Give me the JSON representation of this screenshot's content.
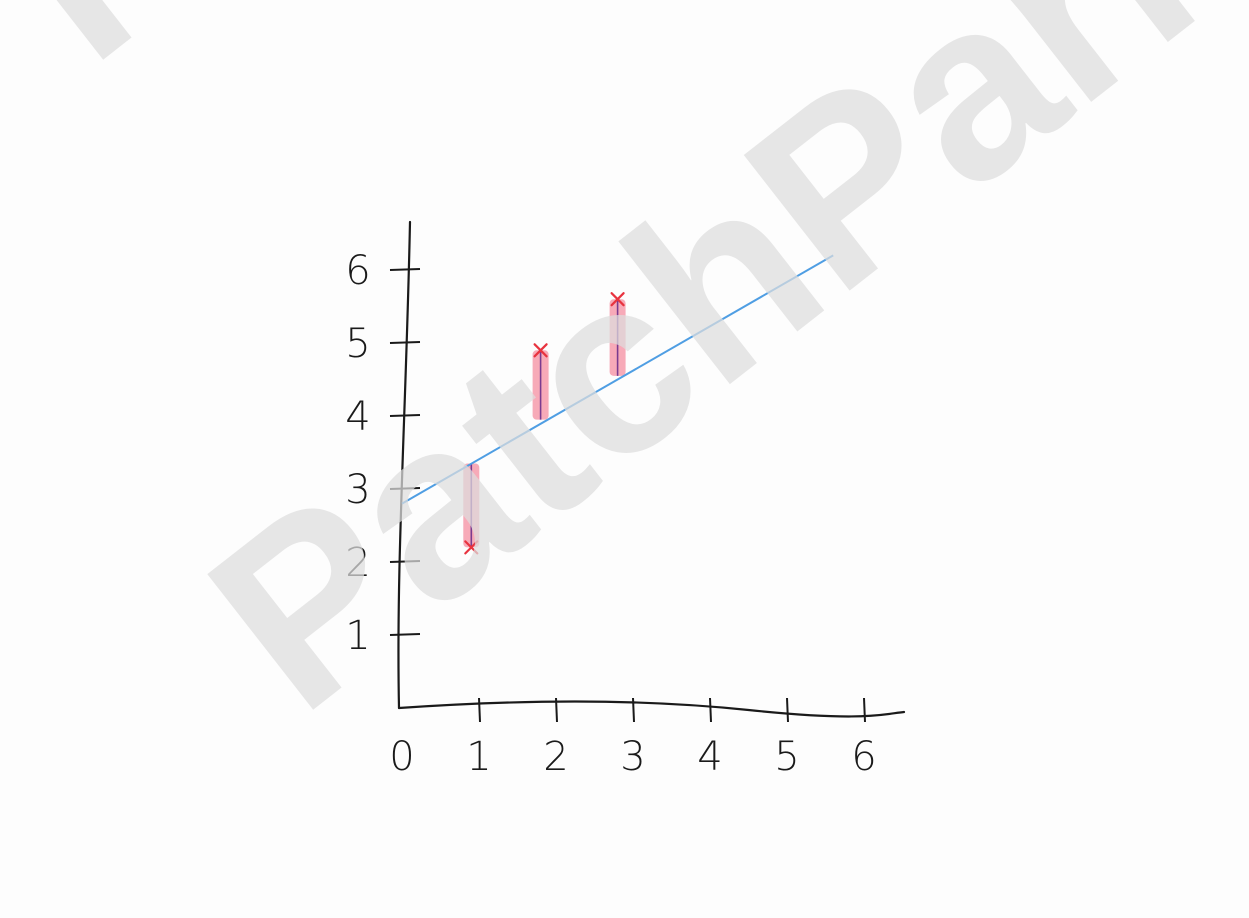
{
  "watermark": {
    "text": "PatchPark",
    "fragment": "F"
  },
  "colors": {
    "axis": "#1a1a1a",
    "fit_line": "#4f9ee3",
    "residual_fill": "#f48ea0",
    "residual_line": "#7a3b8f",
    "point": "#e8333f"
  },
  "chart_data": {
    "type": "scatter",
    "title": "",
    "xlabel": "",
    "ylabel": "",
    "xlim": [
      0,
      6
    ],
    "ylim": [
      0,
      6
    ],
    "x_ticks": [
      "0",
      "1",
      "2",
      "3",
      "4",
      "5",
      "6"
    ],
    "y_ticks": [
      "1",
      "2",
      "3",
      "4",
      "5",
      "6"
    ],
    "grid": false,
    "series": [
      {
        "type": "scatter",
        "points": [
          {
            "x": 0.9,
            "y": 2.2
          },
          {
            "x": 1.8,
            "y": 4.9
          },
          {
            "x": 2.8,
            "y": 5.6
          }
        ]
      },
      {
        "type": "line",
        "points": [
          {
            "x": 0,
            "y": 2.8
          },
          {
            "x": 5.6,
            "y": 6.2
          }
        ]
      }
    ],
    "annotations": [
      {
        "type": "residual",
        "x": 0.9,
        "y_from": 2.2,
        "y_to": 3.35
      },
      {
        "type": "residual",
        "x": 1.8,
        "y_from": 4.9,
        "y_to": 3.95
      },
      {
        "type": "residual",
        "x": 2.8,
        "y_from": 5.6,
        "y_to": 4.55
      }
    ]
  }
}
